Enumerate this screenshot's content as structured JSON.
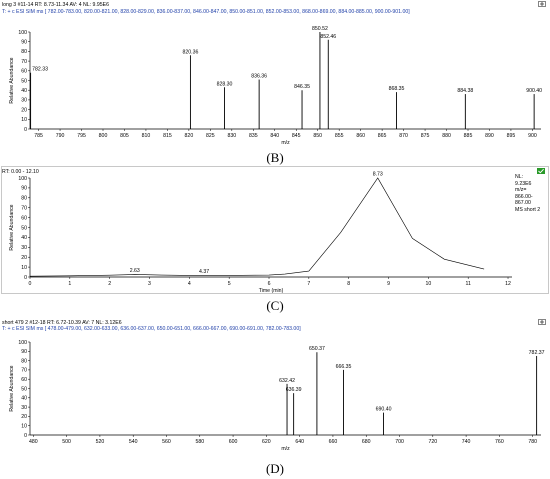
{
  "panels": [
    {
      "id": "B",
      "header_line1": "long 3 #11-14   RT: 8.73-11.34   AV: 4   NL: 9.95E6",
      "header_line2": "T: + c ESI SIM ms [ 782.00-783.00, 820.00-821.00, 828.00-829.00, 836.00-837.00, 846.00-847.00, 850.00-851.00, 852.00-853.00, 868.00-869.00, 884.00-885.00, 900.00-901.00]",
      "caption": "(B)"
    },
    {
      "id": "C",
      "header_line1": "RT: 0.00 - 12.10",
      "side_text": [
        "NL:",
        "9.23E6",
        "m/z=",
        "866.00-",
        "867.00",
        "MS short 2"
      ],
      "caption": "(C)"
    },
    {
      "id": "D",
      "header_line1": "short 479 2 #12-18   RT: 6.72-10.39   AV: 7   NL: 3.12E6",
      "header_line2": "T: + c ESI SIM ms [ 478.00-479.00, 632.00-633.00, 636.00-637.00, 650.00-651.00, 666.00-667.00, 690.00-691.00, 782.00-783.00]",
      "caption": "(D)"
    }
  ],
  "chart_data": [
    {
      "type": "bar",
      "id": "B",
      "xlabel": "m/z",
      "ylabel": "Relative Abundance",
      "xlim": [
        783,
        902
      ],
      "ylim": [
        0,
        100
      ],
      "xticks": [
        785,
        790,
        795,
        800,
        805,
        810,
        815,
        820,
        825,
        830,
        835,
        840,
        845,
        850,
        855,
        860,
        865,
        870,
        875,
        880,
        885,
        890,
        895,
        900
      ],
      "yticks": [
        0,
        10,
        20,
        30,
        40,
        50,
        60,
        70,
        80,
        90,
        100
      ],
      "peaks": [
        {
          "x": 782.33,
          "y": 58,
          "label": "782.33"
        },
        {
          "x": 820.36,
          "y": 76,
          "label": "820.36"
        },
        {
          "x": 828.3,
          "y": 43,
          "label": "828.30"
        },
        {
          "x": 836.36,
          "y": 51,
          "label": "836.36"
        },
        {
          "x": 846.35,
          "y": 40,
          "label": "846.35"
        },
        {
          "x": 850.52,
          "y": 100,
          "label": "850.52"
        },
        {
          "x": 852.46,
          "y": 92,
          "label": "852.46"
        },
        {
          "x": 868.35,
          "y": 38,
          "label": "868.35"
        },
        {
          "x": 884.38,
          "y": 36,
          "label": "884.38"
        },
        {
          "x": 900.4,
          "y": 36,
          "label": "900.40"
        }
      ]
    },
    {
      "type": "line",
      "id": "C",
      "xlabel": "Time (min)",
      "ylabel": "Relative Abundance",
      "xlim": [
        0,
        12.1
      ],
      "ylim": [
        0,
        100
      ],
      "xticks": [
        0,
        1,
        2,
        3,
        4,
        5,
        6,
        7,
        8,
        9,
        10,
        11,
        12
      ],
      "yticks": [
        0,
        10,
        20,
        30,
        40,
        50,
        60,
        70,
        80,
        90,
        100
      ],
      "x": [
        0,
        1.0,
        2.0,
        2.63,
        3.3,
        4.0,
        4.37,
        5.0,
        6.0,
        6.4,
        7.0,
        7.8,
        8.73,
        9.6,
        10.4,
        11.4
      ],
      "y": [
        0.8,
        1.2,
        1.8,
        2.6,
        2.0,
        1.6,
        1.6,
        1.6,
        2.0,
        3.0,
        6.0,
        45,
        100,
        39,
        18,
        8
      ],
      "annotations": [
        {
          "x": 2.63,
          "y": 2.6,
          "label": "2.63"
        },
        {
          "x": 4.37,
          "y": 1.6,
          "label": "4.37"
        },
        {
          "x": 8.73,
          "y": 100,
          "label": "8.73"
        }
      ]
    },
    {
      "type": "bar",
      "id": "D",
      "xlabel": "m/z",
      "ylabel": "Relative Abundance",
      "xlim": [
        478,
        785
      ],
      "ylim": [
        0,
        100
      ],
      "xticks": [
        480,
        500,
        520,
        540,
        560,
        580,
        600,
        620,
        640,
        660,
        680,
        700,
        720,
        740,
        760,
        780
      ],
      "yticks": [
        0,
        10,
        20,
        30,
        40,
        50,
        60,
        70,
        80,
        90,
        100
      ],
      "peaks": [
        {
          "x": 478.0,
          "y": 0,
          "label": ""
        },
        {
          "x": 632.42,
          "y": 55,
          "label": "632.42"
        },
        {
          "x": 636.39,
          "y": 45,
          "label": "636.39"
        },
        {
          "x": 650.37,
          "y": 89,
          "label": "650.37"
        },
        {
          "x": 666.35,
          "y": 70,
          "label": "666.35"
        },
        {
          "x": 690.4,
          "y": 24,
          "label": "690.40"
        },
        {
          "x": 782.37,
          "y": 85,
          "label": "782.37"
        }
      ]
    }
  ]
}
